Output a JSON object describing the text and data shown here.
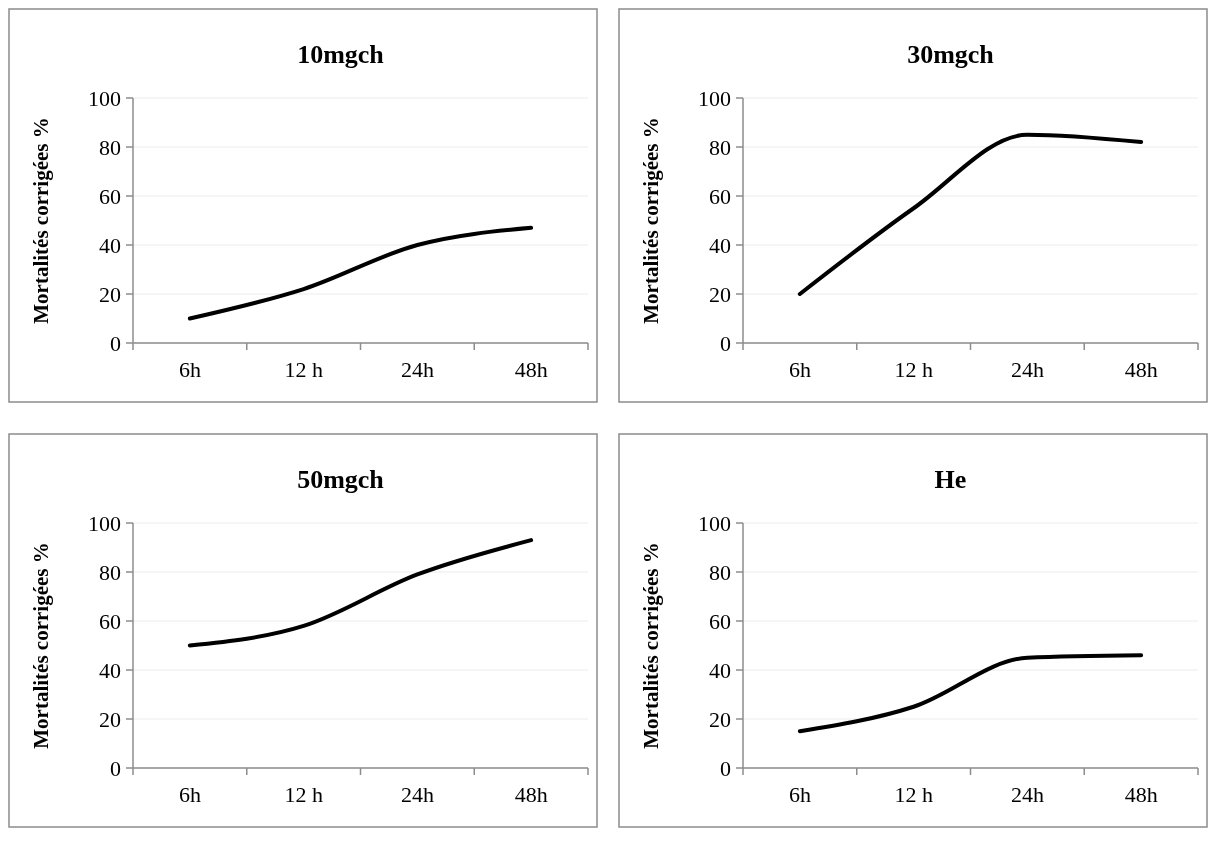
{
  "chart_data": [
    {
      "type": "line",
      "title": "10mgch",
      "ylabel": "Mortalités corrigées %",
      "categories": [
        "6h",
        "12 h",
        "24h",
        "48h"
      ],
      "series": [
        {
          "color": "#000000",
          "values": [
            10,
            22,
            40,
            47
          ]
        }
      ],
      "ylim": [
        0,
        100
      ],
      "yticks": [
        0,
        20,
        40,
        60,
        80,
        100
      ],
      "grid": "y",
      "marker": "none"
    },
    {
      "type": "line",
      "title": "30mgch",
      "ylabel": "Mortalités corrigées %",
      "categories": [
        "6h",
        "12 h",
        "24h",
        "48h"
      ],
      "series": [
        {
          "color": "#000000",
          "values": [
            20,
            55,
            85,
            82
          ]
        }
      ],
      "ylim": [
        0,
        100
      ],
      "yticks": [
        0,
        20,
        40,
        60,
        80,
        100
      ],
      "grid": "y",
      "marker": "none"
    },
    {
      "type": "line",
      "title": "50mgch",
      "ylabel": "Mortalités corrigées %",
      "categories": [
        "6h",
        "12 h",
        "24h",
        "48h"
      ],
      "series": [
        {
          "color": "#000000",
          "values": [
            50,
            58,
            79,
            93
          ]
        }
      ],
      "ylim": [
        0,
        100
      ],
      "yticks": [
        0,
        20,
        40,
        60,
        80,
        100
      ],
      "grid": "y",
      "marker": "none"
    },
    {
      "type": "line",
      "title": "He",
      "ylabel": "Mortalités corrigées %",
      "categories": [
        "6h",
        "12 h",
        "24h",
        "48h"
      ],
      "series": [
        {
          "color": "#000000",
          "values": [
            15,
            25,
            45,
            46
          ]
        }
      ],
      "ylim": [
        0,
        100
      ],
      "yticks": [
        0,
        20,
        40,
        60,
        80,
        100
      ],
      "grid": "y",
      "marker": "none"
    }
  ]
}
